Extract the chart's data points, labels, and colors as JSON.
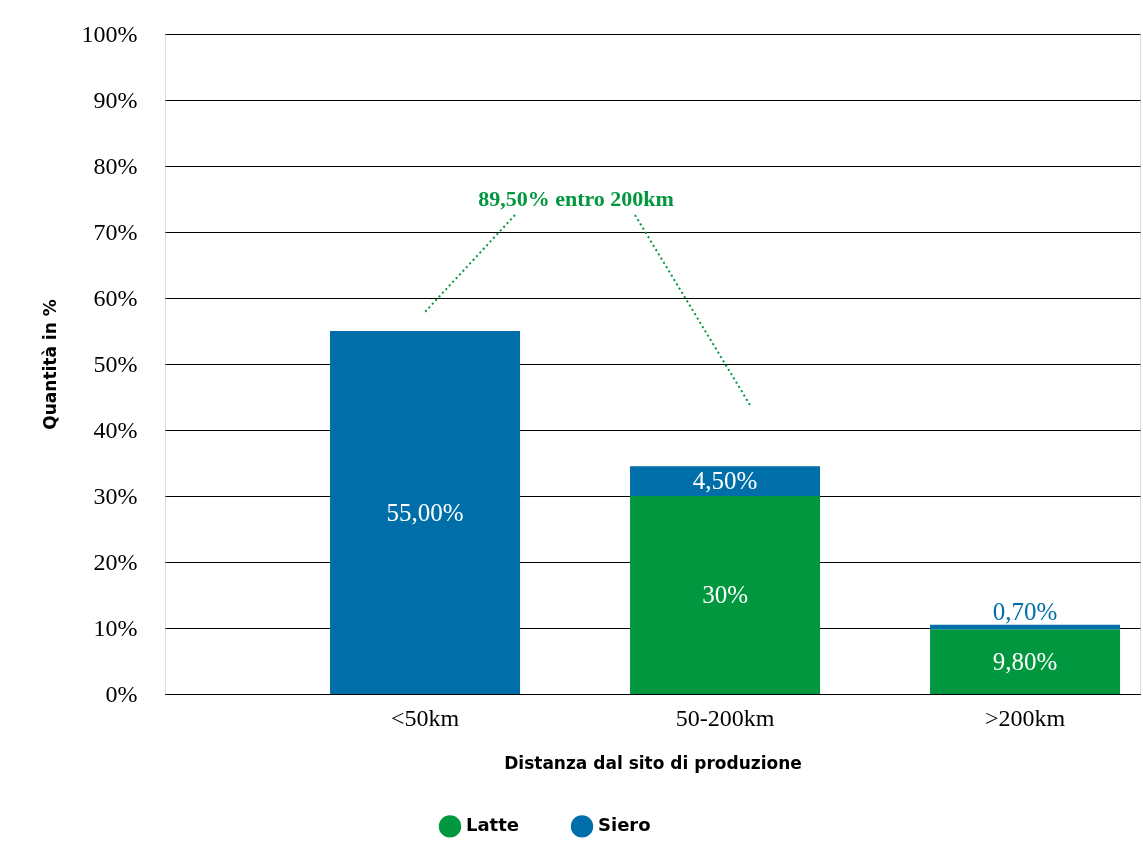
{
  "chart_data": {
    "type": "bar",
    "stacked": true,
    "categories": [
      "<50km",
      "50-200km",
      ">200km"
    ],
    "series": [
      {
        "name": "Latte",
        "color": "#00973f",
        "values": [
          null,
          30,
          9.8
        ],
        "value_labels": [
          null,
          "30%",
          "9,80%"
        ]
      },
      {
        "name": "Siero",
        "color": "#006ea8",
        "values": [
          55,
          4.5,
          0.7
        ],
        "value_labels": [
          "55,00%",
          "4,50%",
          "0,70%"
        ]
      }
    ],
    "ylim": [
      0,
      100
    ],
    "yticks": [
      {
        "value": 0,
        "label": "0%"
      },
      {
        "value": 10,
        "label": "10%"
      },
      {
        "value": 20,
        "label": "20%"
      },
      {
        "value": 30,
        "label": "30%"
      },
      {
        "value": 40,
        "label": "40%"
      },
      {
        "value": 50,
        "label": "50%"
      },
      {
        "value": 60,
        "label": "60%"
      },
      {
        "value": 70,
        "label": "70%"
      },
      {
        "value": 80,
        "label": "80%"
      },
      {
        "value": 90,
        "label": "90%"
      },
      {
        "value": 100,
        "label": "100%"
      }
    ],
    "xlabel": "Distanza dal sito di produzione",
    "ylabel": "Quantità in %",
    "annotations": [
      "89,50% entro 200km"
    ],
    "grid": "y",
    "legend": "bottom"
  }
}
